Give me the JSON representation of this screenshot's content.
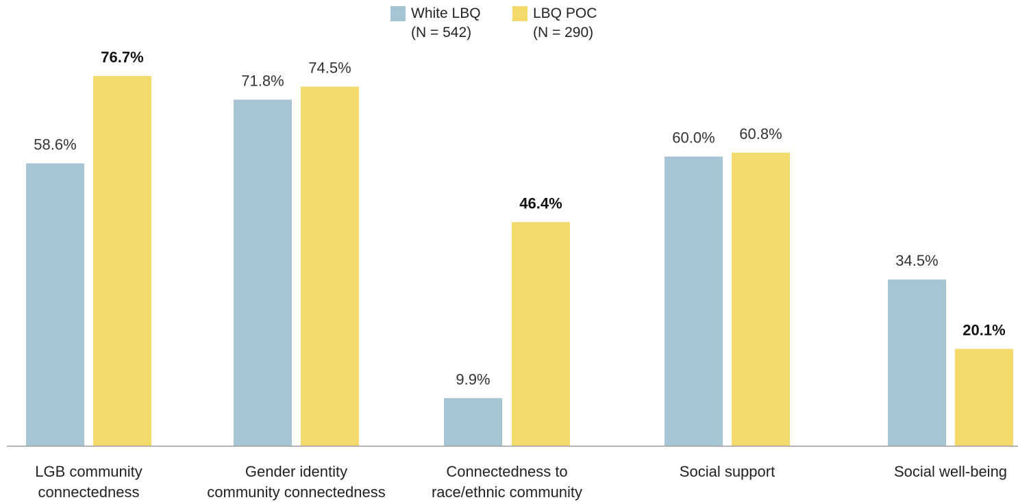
{
  "chart_data": {
    "type": "bar",
    "categories": [
      [
        "LGB community",
        "connectedness"
      ],
      [
        "Gender identity",
        "community connectedness"
      ],
      [
        "Connectedness to",
        "race/ethnic community"
      ],
      [
        "Social support"
      ],
      [
        "Social well-being"
      ]
    ],
    "series": [
      {
        "name": "White LBQ",
        "note": "(N = 542)",
        "color": "#a7c4d4",
        "values": [
          58.6,
          71.8,
          9.9,
          60.0,
          34.5
        ],
        "labels": [
          "58.6%",
          "71.8%",
          "9.9%",
          "60.0%",
          "34.5%"
        ],
        "bold": [
          false,
          false,
          false,
          false,
          false
        ]
      },
      {
        "name": "LBQ POC",
        "note": "(N = 290)",
        "color": "#f4d96b",
        "values": [
          76.7,
          74.5,
          46.4,
          60.8,
          20.1
        ],
        "labels": [
          "76.7%",
          "74.5%",
          "46.4%",
          "60.8%",
          "20.1%"
        ],
        "bold": [
          true,
          false,
          true,
          false,
          true
        ]
      }
    ],
    "ylim": [
      0,
      100
    ],
    "legend_position": "top-center",
    "grid": false
  }
}
